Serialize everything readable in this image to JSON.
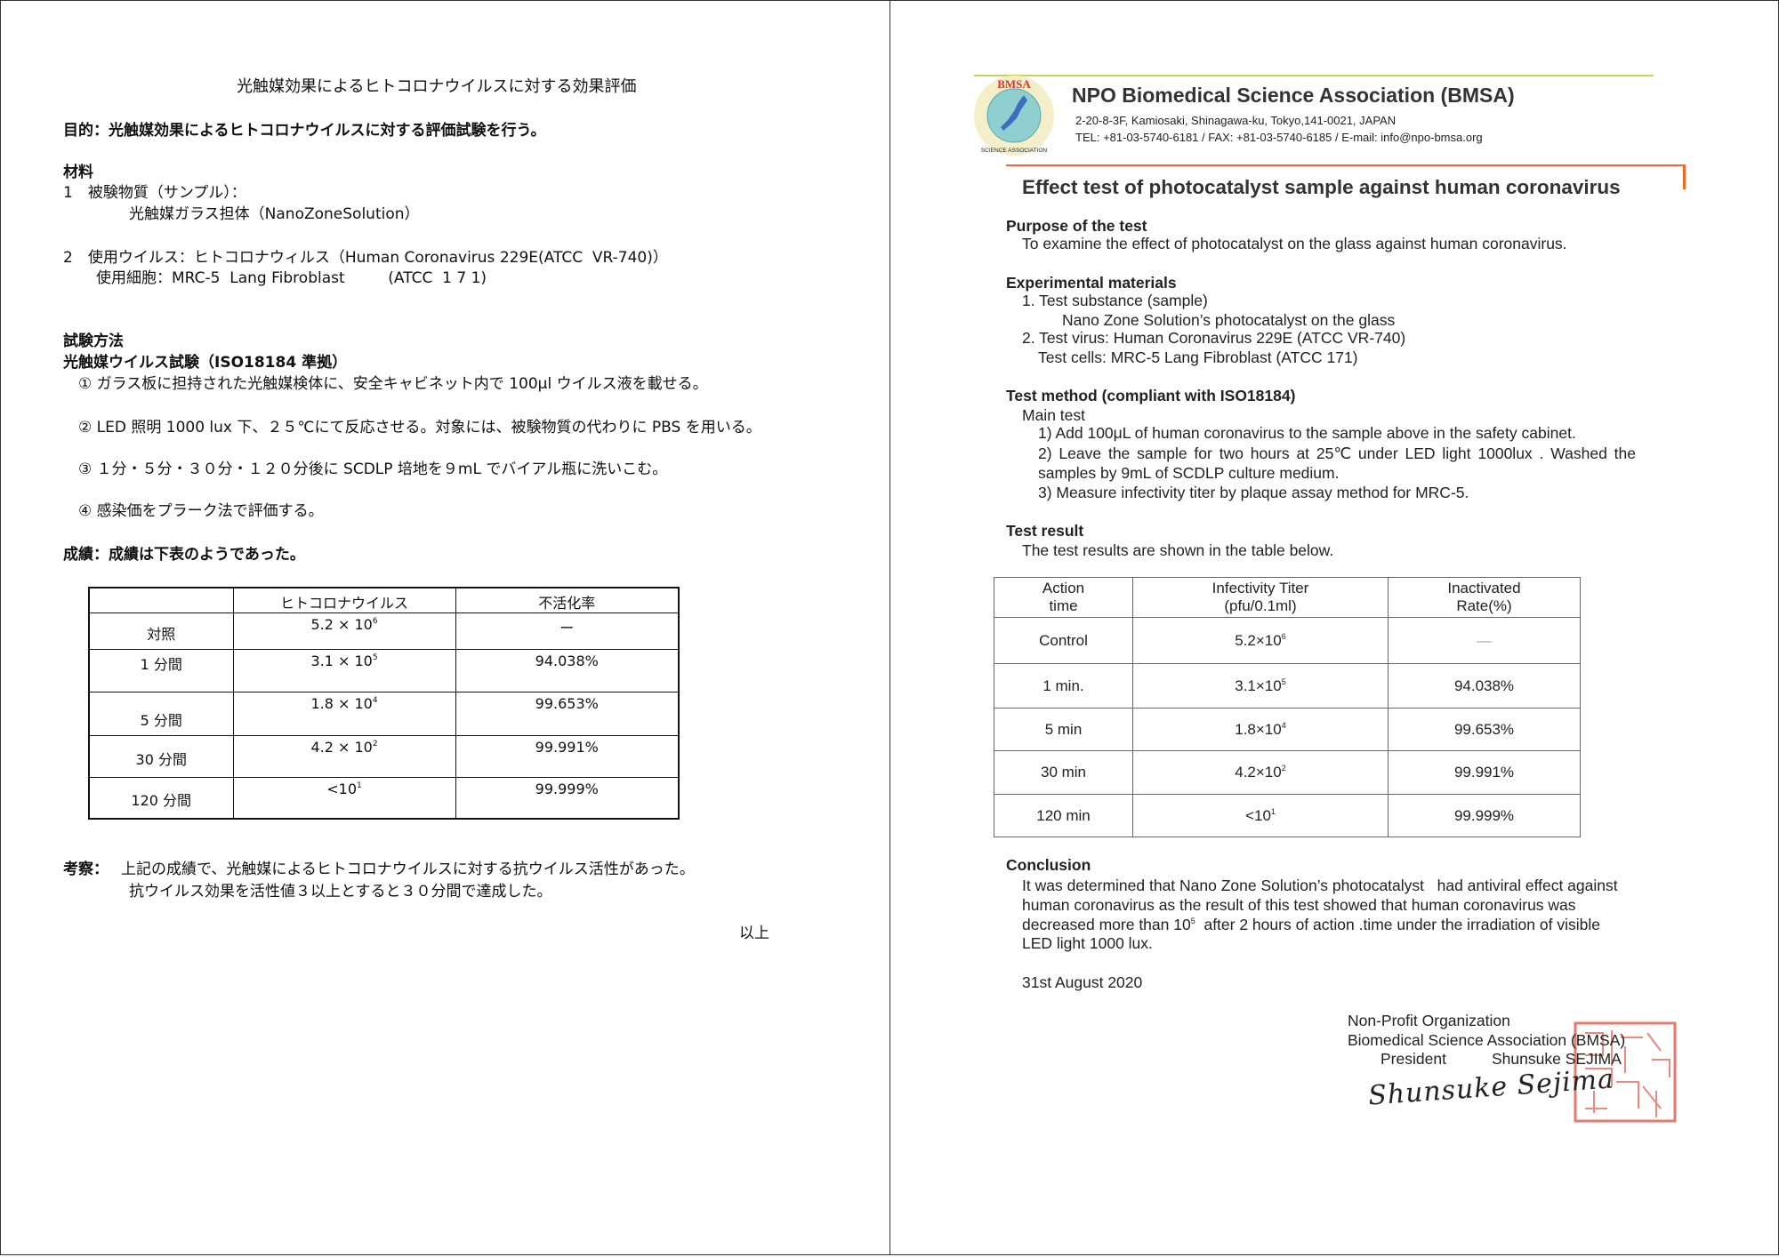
{
  "left": {
    "title": "光触媒効果によるヒトコロナウイルスに対する効果評価",
    "purpose": "目的：光触媒効果によるヒトコロナウイルスに対する評価試験を行う。",
    "materials_heading": "材料",
    "material1_label": "1　被験物質（サンプル）：",
    "material1_value": "光触媒ガラス担体（NanoZoneSolution）",
    "material2_label": "2　使用ウイルス：ヒトコロナウィルス（Human Coronavirus 229E(ATCC  VR-740)）",
    "material2_cells": "使用細胞：MRC-5  Lang Fibroblast         (ATCC  1 7 1)",
    "method_heading": "試験方法",
    "method_sub": "光触媒ウイルス試験（ISO18184 準拠）",
    "steps": [
      "① ガラス板に担持された光触媒検体に、安全キャビネット内で 100μl ウイルス液を載せる。",
      "② LED 照明 1000 lux 下、２５℃にて反応させる。対象には、被験物質の代わりに PBS を用いる。",
      "③ １分・５分・３０分・１２０分後に SCDLP 培地を９mL でバイアル瓶に洗いこむ。",
      "④ 感染価をプラーク法で評価する。"
    ],
    "results_line": "成績：成績は下表のようであった。",
    "table": {
      "headers": [
        "",
        "ヒトコロナウイルス",
        "不活化率"
      ],
      "rows": [
        {
          "time": "対照",
          "titer": "5.2 ×  10",
          "exp": "6",
          "rate": "ー"
        },
        {
          "time": "1 分間",
          "titer": "3.1 ×  10",
          "exp": "5",
          "rate": "94.038%"
        },
        {
          "time": "5 分間",
          "titer": "1.8 ×  10",
          "exp": "4",
          "rate": "99.653%"
        },
        {
          "time": "30 分間",
          "titer": "4.2 ×  10",
          "exp": "2",
          "rate": "99.991%"
        },
        {
          "time": "120 分間",
          "titer": "<10",
          "exp": "1",
          "rate": "99.999%"
        }
      ]
    },
    "discussion_label": "考察：",
    "discussion_1": "上記の成績で、光触媒によるヒトコロナウイルスに対する抗ウイルス活性があった。",
    "discussion_2": "抗ウイルス効果を活性値３以上とすると３０分間で達成した。",
    "end": "以上"
  },
  "right": {
    "logo_text": "BMSA · BIO-MEDICAL SCIENCE ASSOCIATION",
    "org_name": "NPO Biomedical Science Association (BMSA)",
    "address": "2-20-8-3F, Kamiosaki, Shinagawa-ku, Tokyo,141-0021, JAPAN",
    "contact": "TEL: +81-03-5740-6181 / FAX: +81-03-5740-6185 / E-mail: info@npo-bmsa.org",
    "title": "Effect test of photocatalyst sample against human coronavirus",
    "purpose_heading": "Purpose of the test",
    "purpose_text": "To examine the effect of photocatalyst on the glass against human coronavirus.",
    "materials_heading": "Experimental materials",
    "materials": [
      "1. Test substance (sample)",
      "Nano Zone Solution’s photocatalyst on the glass",
      "2. Test virus: Human Coronavirus 229E (ATCC VR-740)",
      "Test cells: MRC-5 Lang Fibroblast (ATCC 171)"
    ],
    "method_heading": "Test method (compliant with ISO18184)",
    "method_main": "Main test",
    "method_steps": [
      "1) Add 100μL of human coronavirus to the sample above in the safety cabinet.",
      "2) Leave the sample for two hours at 25℃ under LED light 1000lux . Washed the",
      "samples by 9mL of SCDLP culture medium.",
      "3) Measure infectivity titer by plaque assay method for MRC-5."
    ],
    "result_heading": "Test result",
    "result_text": "The test results are shown in the table below.",
    "table": {
      "headers": [
        {
          "l1": "Action",
          "l2": "time"
        },
        {
          "l1": "Infectivity Titer",
          "l2": "(pfu/0.1ml)"
        },
        {
          "l1": "Inactivated",
          "l2": "Rate(%)"
        }
      ],
      "rows": [
        {
          "time": "Control",
          "titer": "5.2×10",
          "exp": "6",
          "rate": "—"
        },
        {
          "time": "1 min.",
          "titer": "3.1×10",
          "exp": "5",
          "rate": "94.038%"
        },
        {
          "time": "5 min",
          "titer": "1.8×10",
          "exp": "4",
          "rate": "99.653%"
        },
        {
          "time": "30 min",
          "titer": "4.2×10",
          "exp": "2",
          "rate": "99.991%"
        },
        {
          "time": "120 min",
          "titer": "<10",
          "exp": "1",
          "rate": "99.999%"
        }
      ]
    },
    "conclusion_heading": "Conclusion",
    "conclusion_1": "It was determined that Nano Zone Solution’s photocatalyst   had antiviral effect against",
    "conclusion_2": "human coronavirus as the result of this test showed that human coronavirus was",
    "conclusion_3a": "decreased more than 10",
    "conclusion_3exp": "5",
    "conclusion_3b": "  after 2 hours of action .time under the irradiation of visible",
    "conclusion_4": "LED light 1000 lux.",
    "date": "31st August 2020",
    "sign_org1": "Non-Profit Organization",
    "sign_org2": "Biomedical Science Association (BMSA)",
    "sign_role": "President",
    "sign_name": "Shunsuke SEJIMA",
    "signature": "Shunsuke Sejima",
    "colors": {
      "green_rule": "#c8d45a",
      "orange_rule": "#f06a2a",
      "stamp": "#e0584a"
    }
  }
}
